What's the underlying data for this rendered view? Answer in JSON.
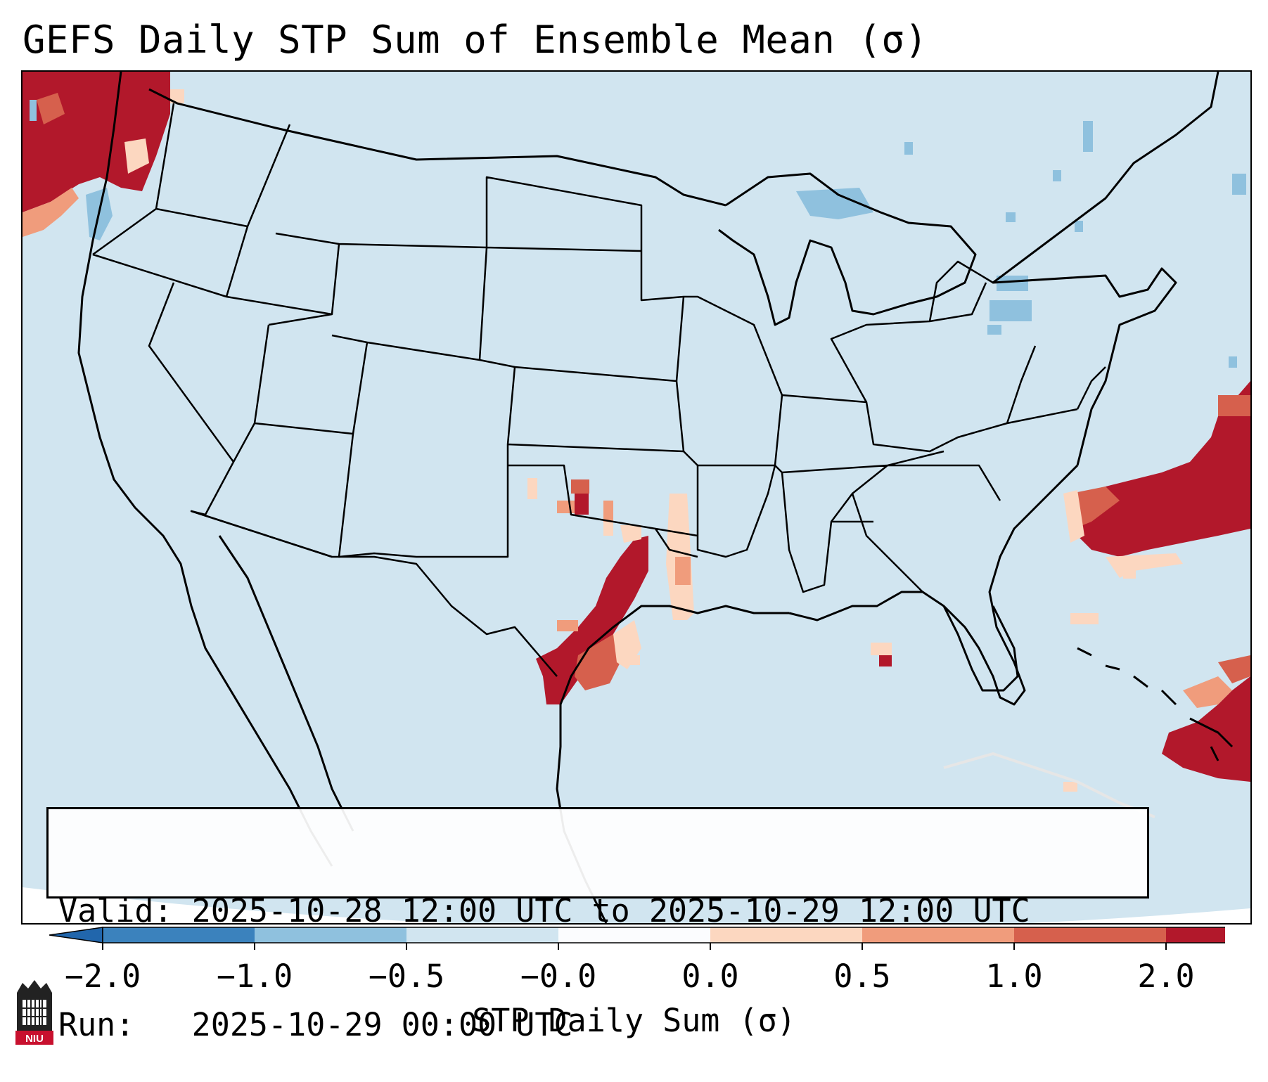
{
  "title": "GEFS Daily STP Sum of Ensemble Mean (σ)",
  "info": {
    "valid_label": "Valid:",
    "valid_value": "2025-10-28 12:00 UTC to 2025-10-29 12:00 UTC",
    "run_label": "Run:",
    "run_value": "2025-10-29 00:00 UTC"
  },
  "colorbar": {
    "label": "STP Daily Sum (σ)",
    "ticks": [
      "−2.0",
      "−1.0",
      "−0.5",
      "−0.0",
      "0.0",
      "0.5",
      "1.0",
      "2.0"
    ],
    "colors": [
      "#3b82bd",
      "#8fc1de",
      "#d1e5f0",
      "#fbfcfe",
      "#fcd7c0",
      "#f09c7c",
      "#d6604d",
      "#b2182b"
    ],
    "extend_low_color": "#2166ac",
    "extend_high_color": "#b2182b"
  },
  "map": {
    "background_color": "#d1e5f0",
    "border_color": "#000000",
    "projection": "Lambert Conformal (CONUS)"
  },
  "logo": {
    "text": "NIU",
    "icon": "niu-logo-icon"
  }
}
